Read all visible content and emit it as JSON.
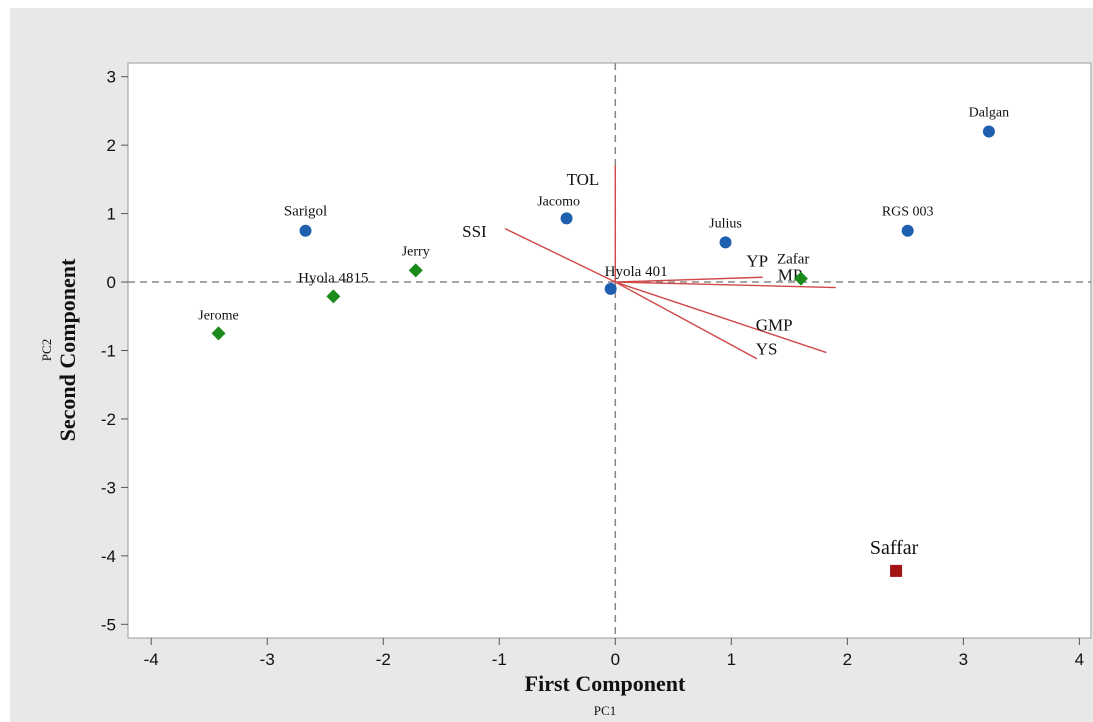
{
  "chart_data": {
    "type": "scatter",
    "title": "",
    "xlabel": "First Component",
    "xlabel_sub": "PC1",
    "ylabel": "Second Component",
    "ylabel_sub": "PC2",
    "xlim": [
      -4.2,
      4.1
    ],
    "ylim": [
      -5.2,
      3.2
    ],
    "xticks": [
      -4,
      -3,
      -2,
      -1,
      0,
      1,
      2,
      3,
      4
    ],
    "yticks": [
      -5,
      -4,
      -3,
      -2,
      -1,
      0,
      1,
      2,
      3
    ],
    "reference_lines": {
      "x": 0,
      "y": 0,
      "style": "dashed"
    },
    "grid": false,
    "colors": {
      "circle": "#1f5fb0",
      "diamond": "#1a8a1a",
      "square": "#a31515",
      "vector": "#d04848"
    },
    "points": [
      {
        "label": "Dalgan",
        "x": 3.22,
        "y": 2.2,
        "marker": "circle"
      },
      {
        "label": "RGS 003",
        "x": 2.52,
        "y": 0.75,
        "marker": "circle"
      },
      {
        "label": "Sarigol",
        "x": -2.67,
        "y": 0.75,
        "marker": "circle"
      },
      {
        "label": "Jacomo",
        "x": -0.42,
        "y": 0.93,
        "marker": "circle"
      },
      {
        "label": "Julius",
        "x": 0.95,
        "y": 0.58,
        "marker": "circle"
      },
      {
        "label": "Hyola 401",
        "x": -0.04,
        "y": -0.1,
        "marker": "circle"
      },
      {
        "label": "Jerry",
        "x": -1.72,
        "y": 0.17,
        "marker": "diamond"
      },
      {
        "label": "Hyola 4815",
        "x": -2.43,
        "y": -0.21,
        "marker": "diamond"
      },
      {
        "label": "Jerome",
        "x": -3.42,
        "y": -0.75,
        "marker": "diamond"
      },
      {
        "label": "Zafar",
        "x": 1.6,
        "y": 0.05,
        "marker": "diamond"
      },
      {
        "label": "Saffar",
        "x": 2.42,
        "y": -4.22,
        "marker": "square"
      }
    ],
    "vectors": [
      {
        "label": "TOL",
        "x": 0.0,
        "y": 1.7
      },
      {
        "label": "SSI",
        "x": -0.95,
        "y": 0.78
      },
      {
        "label": "YP",
        "x": 1.27,
        "y": 0.07
      },
      {
        "label": "MP",
        "x": 1.9,
        "y": -0.08
      },
      {
        "label": "GMP",
        "x": 1.82,
        "y": -1.03
      },
      {
        "label": "YS",
        "x": 1.22,
        "y": -1.12
      }
    ]
  }
}
